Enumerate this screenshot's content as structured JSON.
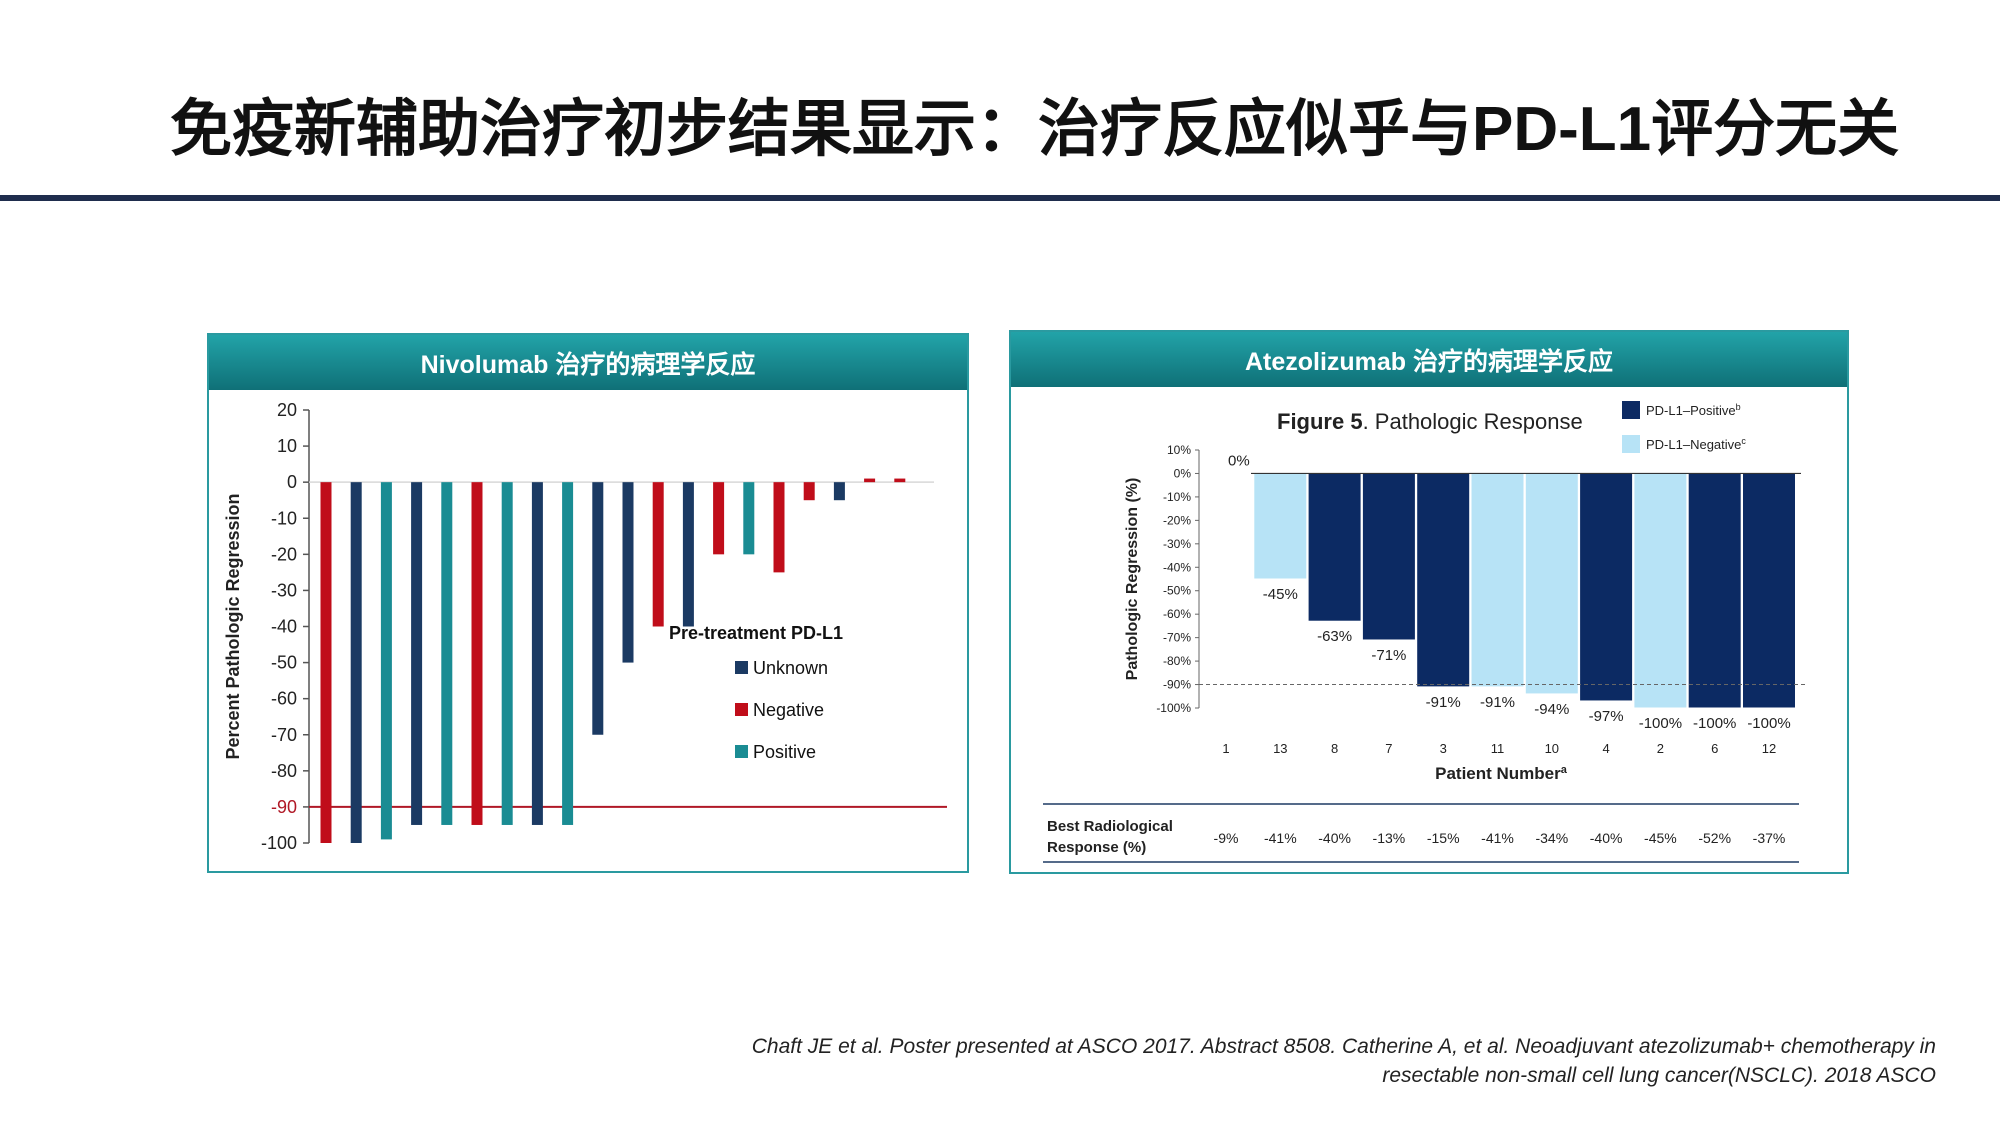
{
  "slide": {
    "title": "免疫新辅助治疗初步结果显示：治疗反应似乎与PD-L1评分无关",
    "citation_line1": "Chaft JE et al. Poster presented at ASCO 2017. Abstract 8508. Catherine A, et al. Neoadjuvant atezolizumab+ chemotherapy in",
    "citation_line2": "resectable non-small cell lung cancer(NSCLC). 2018 ASCO"
  },
  "colors": {
    "header": "#15848a",
    "unknown": "#1b3a63",
    "negative": "#c00d1a",
    "positive": "#1a8c93",
    "pdl1_positive": "#0c2a63",
    "pdl1_negative": "#b7e3f6",
    "threshold_line": "#b01826"
  },
  "panels": {
    "left": {
      "header": "Nivolumab 治疗的病理学反应"
    },
    "right": {
      "header": "Atezolizumab 治疗的病理学反应"
    }
  },
  "chart_data": [
    {
      "type": "bar",
      "ylabel": "Percent Pathologic Regression",
      "ylim": [
        -100,
        20
      ],
      "yticks": [
        20,
        10,
        0,
        -10,
        -20,
        -30,
        -40,
        -50,
        -60,
        -70,
        -80,
        -90,
        -100
      ],
      "threshold": -90,
      "legend_title": "Pre-treatment PD-L1",
      "legend": [
        {
          "key": "unknown",
          "label": "Unknown"
        },
        {
          "key": "negative",
          "label": "Negative"
        },
        {
          "key": "positive",
          "label": "Positive"
        }
      ],
      "legend_position": "center-right",
      "values": [
        -100,
        -100,
        -99,
        -95,
        -95,
        -95,
        -95,
        -95,
        -95,
        -70,
        -50,
        -40,
        -40,
        -20,
        -20,
        -25,
        -5,
        -5,
        1,
        1
      ],
      "groups": [
        "negative",
        "unknown",
        "positive",
        "unknown",
        "positive",
        "negative",
        "positive",
        "unknown",
        "positive",
        "unknown",
        "unknown",
        "negative",
        "unknown",
        "negative",
        "positive",
        "negative",
        "negative",
        "unknown",
        "negative",
        "negative"
      ]
    },
    {
      "type": "bar",
      "title_bold": "Figure 5",
      "title_rest": ". Pathologic Response",
      "xlabel": "Patient Number",
      "xlabel_sup": "a",
      "ylabel": "Pathologic Regression (%)",
      "ylim": [
        -100,
        10
      ],
      "yticks": [
        "10%",
        "0%",
        "-10%",
        "-20%",
        "-30%",
        "-40%",
        "-50%",
        "-60%",
        "-70%",
        "-80%",
        "-90%",
        "-100%"
      ],
      "threshold": -90,
      "categories": [
        "1",
        "13",
        "8",
        "7",
        "3",
        "11",
        "10",
        "4",
        "2",
        "6",
        "12"
      ],
      "values": [
        0,
        -45,
        -63,
        -71,
        -91,
        -91,
        -94,
        -97,
        -100,
        -100,
        -100
      ],
      "labels": [
        "0%",
        "-45%",
        "-63%",
        "-71%",
        "-91%",
        "-91%",
        "-94%",
        "-97%",
        "-100%",
        "-100%",
        "-100%"
      ],
      "groups": [
        "negative",
        "negative",
        "positive",
        "positive",
        "positive",
        "negative",
        "negative",
        "positive",
        "negative",
        "positive",
        "positive"
      ],
      "legend": [
        {
          "key": "positive",
          "label": "PD-L1–Positive",
          "sup": "b"
        },
        {
          "key": "negative",
          "label": "PD-L1–Negative",
          "sup": "c"
        }
      ],
      "legend_position": "top-right",
      "table_label_line1": "Best Radiological",
      "table_label_line2": "Response (%)",
      "radiological_response": [
        "-9%",
        "-41%",
        "-40%",
        "-13%",
        "-15%",
        "-41%",
        "-34%",
        "-40%",
        "-45%",
        "-52%",
        "-37%"
      ]
    }
  ]
}
